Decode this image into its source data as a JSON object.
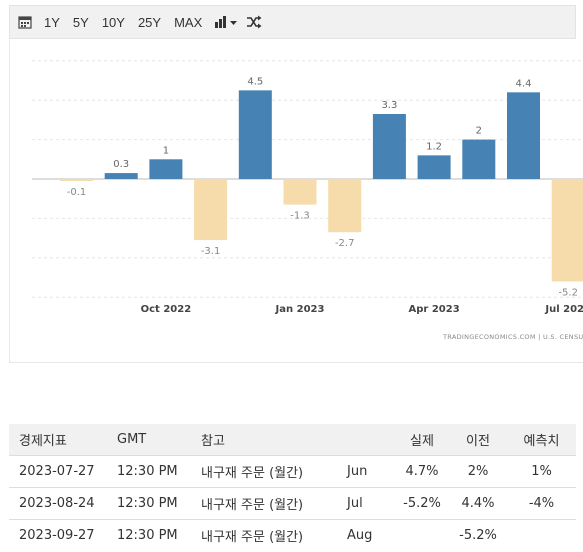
{
  "toolbar": {
    "ranges": [
      "1Y",
      "5Y",
      "10Y",
      "25Y",
      "MAX"
    ]
  },
  "chart_data": {
    "type": "bar",
    "categories": [
      "Aug 2022",
      "Sep 2022",
      "Oct 2022",
      "Nov 2022",
      "Dec 2022",
      "Jan 2023",
      "Feb 2023",
      "Mar 2023",
      "Apr 2023",
      "May 2023",
      "Jun 2023",
      "Jul 2023"
    ],
    "values": [
      -0.1,
      0.3,
      1,
      -3.1,
      4.5,
      -1.3,
      -2.7,
      3.3,
      1.2,
      2,
      4.4,
      -5.2
    ],
    "data_labels": [
      "-0.1",
      "0.3",
      "1",
      "-3.1",
      "4.5",
      "-1.3",
      "-2.7",
      "3.3",
      "1.2",
      "2",
      "4.4",
      "-5.2"
    ],
    "x_ticks": [
      "Oct 2022",
      "Jan 2023",
      "Apr 2023",
      "Jul 2023"
    ],
    "ylim": [
      -6,
      6
    ],
    "grid": true,
    "colors": {
      "positive": "#4682b4",
      "negative": "#f5dcaa",
      "label": "#777777"
    },
    "watermark": "TRADINGECONOMICS.COM | U.S. CENSUS BUREAU"
  },
  "table": {
    "headers": [
      "경제지표",
      "GMT",
      "참고",
      "",
      "실제",
      "이전",
      "예측치"
    ],
    "rows": [
      {
        "date": "2023-07-27",
        "gmt": "12:30 PM",
        "ref": "내구재 주문 (월간)",
        "period": "Jun",
        "actual": "4.7%",
        "previous": "2%",
        "forecast": "1%"
      },
      {
        "date": "2023-08-24",
        "gmt": "12:30 PM",
        "ref": "내구재 주문 (월간)",
        "period": "Jul",
        "actual": "-5.2%",
        "previous": "4.4%",
        "forecast": "-4%"
      },
      {
        "date": "2023-09-27",
        "gmt": "12:30 PM",
        "ref": "내구재 주문 (월간)",
        "period": "Aug",
        "actual": "",
        "previous": "-5.2%",
        "forecast": ""
      }
    ]
  }
}
